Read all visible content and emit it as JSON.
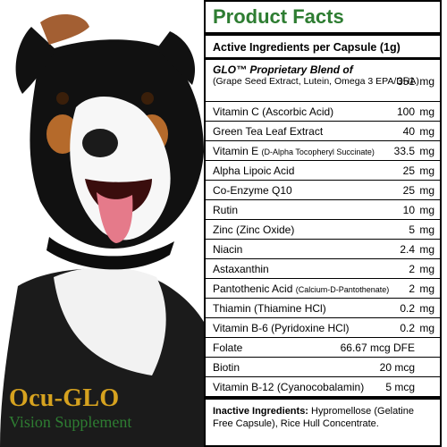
{
  "brand": {
    "name": "Ocu-GLO",
    "subtitle": "Vision Supplement"
  },
  "facts": {
    "title": "Product Facts",
    "subtitle": "Active Ingredients per Capsule (1g)",
    "blend": {
      "title": "GLO™ Proprietary Blend of",
      "description": "(Grape Seed Extract, Lutein, Omega 3 EPA/DHA)",
      "amount": "351",
      "unit": "mg"
    },
    "rows": [
      {
        "name": "Vitamin C (Ascorbic Acid)",
        "amount": "100",
        "unit": "mg"
      },
      {
        "name": "Green Tea Leaf Extract",
        "amount": "40",
        "unit": "mg"
      },
      {
        "name": "Vitamin E",
        "note": "(D-Alpha Tocopheryl Succinate)",
        "amount": "33.5",
        "unit": "mg"
      },
      {
        "name": "Alpha Lipoic Acid",
        "amount": "25",
        "unit": "mg"
      },
      {
        "name": "Co-Enzyme Q10",
        "amount": "25",
        "unit": "mg"
      },
      {
        "name": "Rutin",
        "amount": "10",
        "unit": "mg"
      },
      {
        "name": "Zinc (Zinc Oxide)",
        "amount": "5",
        "unit": "mg"
      },
      {
        "name": "Niacin",
        "amount": "2.4",
        "unit": "mg"
      },
      {
        "name": "Astaxanthin",
        "amount": "2",
        "unit": "mg"
      },
      {
        "name": "Pantothenic Acid",
        "note": "(Calcium-D-Pantothenate)",
        "amount": "2",
        "unit": "mg"
      },
      {
        "name": "Thiamin (Thiamine HCl)",
        "amount": "0.2",
        "unit": "mg"
      },
      {
        "name": "Vitamin B-6 (Pyridoxine HCl)",
        "amount": "0.2",
        "unit": "mg"
      },
      {
        "name": "Folate",
        "amount": "66.67 mcg DFE",
        "unit": ""
      },
      {
        "name": "Biotin",
        "amount": "20 mcg",
        "unit": ""
      },
      {
        "name": "Vitamin B-12 (Cyanocobalamin)",
        "amount": "5 mcg",
        "unit": ""
      }
    ],
    "inactive_label": "Inactive Ingredients:",
    "inactive_text": "Hypromellose (Gelatine Free Capsule), Rice Hull Concentrate."
  },
  "colors": {
    "accent": "#2e7d32",
    "brand_gold": "#d6a21f"
  }
}
